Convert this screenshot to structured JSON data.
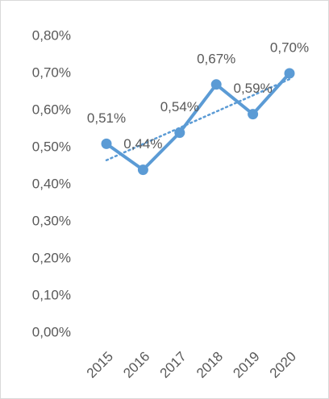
{
  "chart_data": {
    "type": "line",
    "categories": [
      "2015",
      "2016",
      "2017",
      "2018",
      "2019",
      "2020"
    ],
    "series": [
      {
        "color": "#5b9bd5",
        "values": [
          0.51,
          0.44,
          0.54,
          0.67,
          0.59,
          0.7
        ],
        "value_labels": [
          "0,51%",
          "0,44%",
          "0,54%",
          "0,67%",
          "0,59%",
          "0,70%"
        ]
      }
    ],
    "ylim": [
      0,
      0.8
    ],
    "yticks": [
      {
        "value": 0,
        "label": "0,00%"
      },
      {
        "value": 0.1,
        "label": "0,10%"
      },
      {
        "value": 0.2,
        "label": "0,20%"
      },
      {
        "value": 0.3,
        "label": "0,30%"
      },
      {
        "value": 0.4,
        "label": "0,40%"
      },
      {
        "value": 0.5,
        "label": "0,50%"
      },
      {
        "value": 0.6,
        "label": "0,60%"
      },
      {
        "value": 0.7,
        "label": "0,70%"
      },
      {
        "value": 0.8,
        "label": "0,80%"
      }
    ],
    "grid": false,
    "trendline": "linear"
  }
}
